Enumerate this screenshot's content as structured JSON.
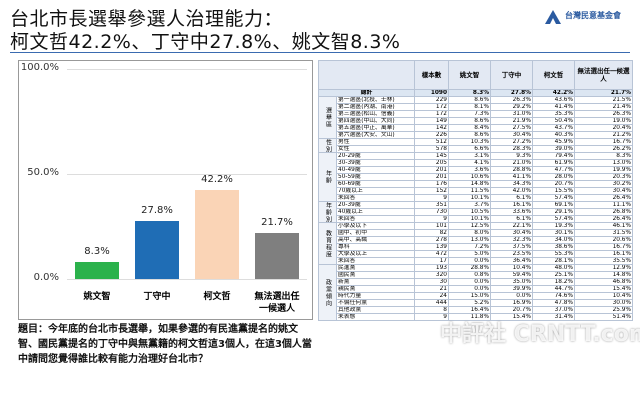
{
  "header": {
    "title_line1": "台北市長選舉參選人治理能力：",
    "title_line2": "柯文哲42.2%、丁守中27.8%、姚文智8.3%",
    "logo": "台灣民意基金會"
  },
  "chart_data": {
    "type": "bar",
    "categories": [
      "姚文智",
      "丁守中",
      "柯文哲",
      "無法選出任一候選人"
    ],
    "values": [
      8.3,
      27.8,
      42.2,
      21.7
    ],
    "value_labels": [
      "8.3%",
      "27.8%",
      "42.2%",
      "21.7%"
    ],
    "colors": [
      "#2bb24c",
      "#1f6db5",
      "#fad4b6",
      "#7f7f7f"
    ],
    "ylim": [
      0,
      100
    ],
    "yticks": [
      {
        "value": 0,
        "label": "0.0%"
      },
      {
        "value": 50,
        "label": "50.0%"
      },
      {
        "value": 100,
        "label": "100.0%"
      }
    ],
    "grid": true
  },
  "question": "題目：今年底的台北市長選舉，如果參選的有民進黨提名的姚文智、國民黨提名的丁守中與無黨籍的柯文哲這3個人，在這3個人當中請問您覺得誰比較有能力治理好台北市？",
  "table": {
    "columns": [
      "樣本數",
      "姚文智",
      "丁守中",
      "柯文哲",
      "無法選出任一候選人"
    ],
    "total": {
      "label": "總計",
      "n": 1090,
      "values": [
        "8.3%",
        "27.8%",
        "42.2%",
        "21.7%"
      ]
    },
    "groups": [
      {
        "label": "選舉區",
        "rows": [
          {
            "label": "第一選區(北投、士林)",
            "n": 229,
            "values": [
              "8.6%",
              "26.3%",
              "43.6%",
              "21.5%"
            ]
          },
          {
            "label": "第二選區(內湖、南港)",
            "n": 172,
            "values": [
              "8.1%",
              "29.2%",
              "41.4%",
              "21.4%"
            ]
          },
          {
            "label": "第三選區(松山、信義)",
            "n": 172,
            "values": [
              "7.3%",
              "31.0%",
              "35.3%",
              "26.3%"
            ]
          },
          {
            "label": "第四選區(中山、大同)",
            "n": 149,
            "values": [
              "8.6%",
              "21.9%",
              "50.4%",
              "19.0%"
            ]
          },
          {
            "label": "第五選區(中正、萬華)",
            "n": 142,
            "values": [
              "8.4%",
              "27.5%",
              "43.7%",
              "20.4%"
            ]
          },
          {
            "label": "第六選區(大安、文山)",
            "n": 226,
            "values": [
              "8.6%",
              "30.4%",
              "40.3%",
              "21.2%"
            ]
          }
        ]
      },
      {
        "label": "性別",
        "rows": [
          {
            "label": "男性",
            "n": 512,
            "values": [
              "10.3%",
              "27.2%",
              "45.9%",
              "16.7%"
            ]
          },
          {
            "label": "女性",
            "n": 578,
            "values": [
              "6.6%",
              "28.3%",
              "39.0%",
              "26.2%"
            ]
          }
        ]
      },
      {
        "label": "年齡",
        "rows": [
          {
            "label": "20-29歲",
            "n": 145,
            "values": [
              "3.1%",
              "9.3%",
              "79.4%",
              "8.3%"
            ]
          },
          {
            "label": "30-39歲",
            "n": 205,
            "values": [
              "4.1%",
              "21.0%",
              "61.9%",
              "13.0%"
            ]
          },
          {
            "label": "40-49歲",
            "n": 201,
            "values": [
              "3.6%",
              "28.8%",
              "47.7%",
              "19.9%"
            ]
          },
          {
            "label": "50-59歲",
            "n": 201,
            "values": [
              "10.6%",
              "41.1%",
              "28.0%",
              "20.3%"
            ]
          },
          {
            "label": "60-69歲",
            "n": 176,
            "values": [
              "14.8%",
              "34.3%",
              "20.7%",
              "30.2%"
            ]
          },
          {
            "label": "70歲以上",
            "n": 152,
            "values": [
              "11.5%",
              "42.0%",
              "15.5%",
              "30.4%"
            ]
          },
          {
            "label": "未回答",
            "n": 9,
            "values": [
              "10.1%",
              "6.1%",
              "57.4%",
              "26.4%"
            ]
          }
        ]
      },
      {
        "label": "年齡別",
        "rows": [
          {
            "label": "20-39歲",
            "n": 351,
            "values": [
              "3.7%",
              "16.1%",
              "69.1%",
              "11.1%"
            ]
          },
          {
            "label": "40歲以上",
            "n": 730,
            "values": [
              "10.5%",
              "33.6%",
              "29.1%",
              "26.8%"
            ]
          },
          {
            "label": "未回答",
            "n": 9,
            "values": [
              "10.1%",
              "6.1%",
              "57.4%",
              "26.4%"
            ]
          }
        ]
      },
      {
        "label": "教育程度",
        "rows": [
          {
            "label": "小學及以下",
            "n": 101,
            "values": [
              "12.5%",
              "22.1%",
              "19.3%",
              "46.1%"
            ]
          },
          {
            "label": "國中、初中",
            "n": 82,
            "values": [
              "8.0%",
              "30.4%",
              "30.1%",
              "31.5%"
            ]
          },
          {
            "label": "高中、高職",
            "n": 278,
            "values": [
              "13.0%",
              "32.3%",
              "34.0%",
              "20.6%"
            ]
          },
          {
            "label": "專科",
            "n": 139,
            "values": [
              "7.2%",
              "37.5%",
              "38.6%",
              "16.7%"
            ]
          },
          {
            "label": "大學及以上",
            "n": 472,
            "values": [
              "5.0%",
              "23.5%",
              "55.3%",
              "16.1%"
            ]
          },
          {
            "label": "未回答",
            "n": 17,
            "values": [
              "0.0%",
              "36.4%",
              "28.1%",
              "35.5%"
            ]
          }
        ]
      },
      {
        "label": "政黨傾向",
        "rows": [
          {
            "label": "民進黨",
            "n": 193,
            "values": [
              "28.8%",
              "10.4%",
              "48.0%",
              "12.9%"
            ]
          },
          {
            "label": "國民黨",
            "n": 320,
            "values": [
              "0.8%",
              "59.4%",
              "25.1%",
              "14.8%"
            ]
          },
          {
            "label": "新黨",
            "n": 30,
            "values": [
              "0.0%",
              "35.0%",
              "18.2%",
              "46.8%"
            ]
          },
          {
            "label": "親民黨",
            "n": 21,
            "values": [
              "0.0%",
              "39.9%",
              "44.7%",
              "15.4%"
            ]
          },
          {
            "label": "時代力量",
            "n": 24,
            "values": [
              "15.0%",
              "0.0%",
              "74.6%",
              "10.4%"
            ]
          },
          {
            "label": "不偏任何黨",
            "n": 444,
            "values": [
              "5.2%",
              "16.9%",
              "47.8%",
              "30.0%"
            ]
          },
          {
            "label": "其他政黨",
            "n": 8,
            "values": [
              "16.4%",
              "20.7%",
              "37.0%",
              "25.9%"
            ]
          },
          {
            "label": "未表態",
            "n": 9,
            "values": [
              "11.8%",
              "15.4%",
              "31.4%",
              "51.4%"
            ]
          }
        ]
      }
    ]
  },
  "watermark": "中評社 CRNTT.com"
}
